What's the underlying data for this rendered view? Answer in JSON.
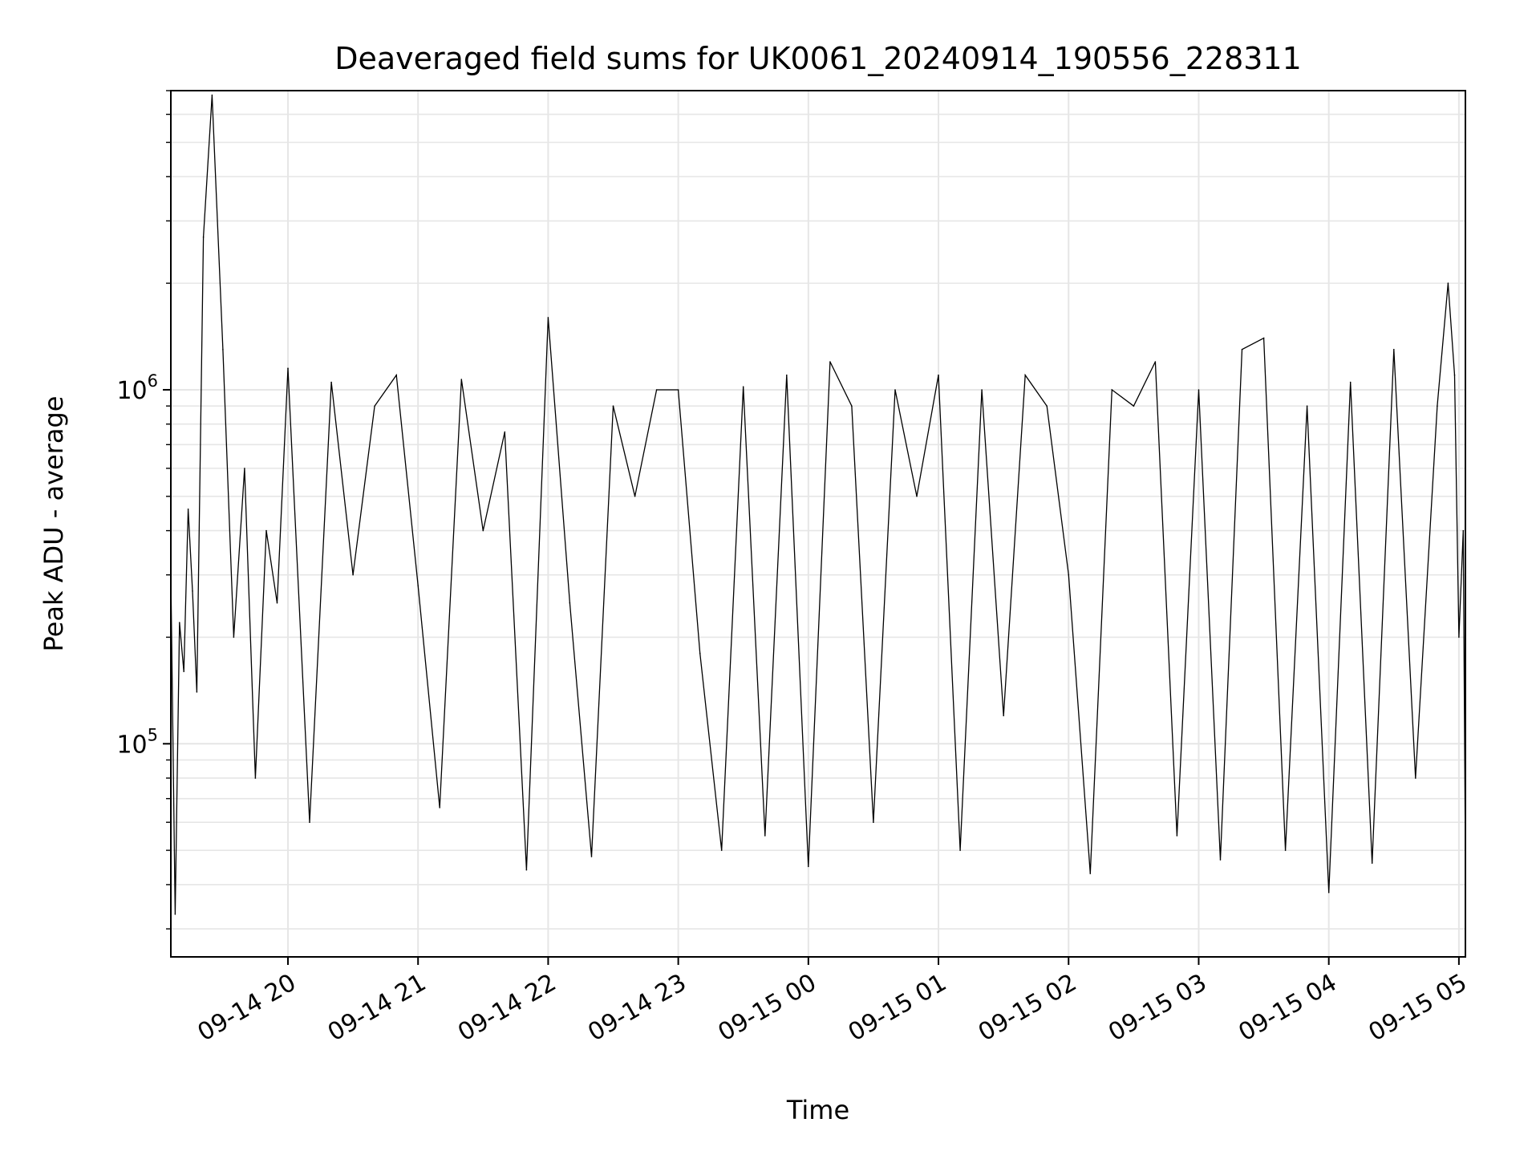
{
  "chart_data": {
    "type": "line",
    "title": "Deaveraged field sums for UK0061_20240914_190556_228311",
    "xlabel": "Time",
    "ylabel": "Peak ADU - average",
    "y_scale": "log",
    "ylim": [
      25000,
      7000000
    ],
    "xlim": [
      "2024-09-14 19:06",
      "2024-09-15 05:03"
    ],
    "grid": true,
    "line_color": "#000000",
    "x_tick_labels": [
      "09-14 20",
      "09-14 21",
      "09-14 22",
      "09-14 23",
      "09-15 00",
      "09-15 01",
      "09-15 02",
      "09-15 03",
      "09-15 04",
      "09-15 05"
    ],
    "x_tick_times": [
      "2024-09-14 20:00",
      "2024-09-14 21:00",
      "2024-09-14 22:00",
      "2024-09-14 23:00",
      "2024-09-15 00:00",
      "2024-09-15 01:00",
      "2024-09-15 02:00",
      "2024-09-15 03:00",
      "2024-09-15 04:00",
      "2024-09-15 05:00"
    ],
    "y_tick_labels": [
      {
        "base": "10",
        "exp": "5",
        "value": 100000
      },
      {
        "base": "10",
        "exp": "6",
        "value": 1000000
      }
    ],
    "series": [
      {
        "x": [
          "2024-09-14 19:06",
          "2024-09-14 19:08",
          "2024-09-14 19:10",
          "2024-09-14 19:12",
          "2024-09-14 19:14",
          "2024-09-14 19:16",
          "2024-09-14 19:18",
          "2024-09-14 19:21",
          "2024-09-14 19:25",
          "2024-09-14 19:30",
          "2024-09-14 19:35",
          "2024-09-14 19:40",
          "2024-09-14 19:45",
          "2024-09-14 19:50",
          "2024-09-14 19:55",
          "2024-09-14 20:00",
          "2024-09-14 20:10",
          "2024-09-14 20:20",
          "2024-09-14 20:30",
          "2024-09-14 20:40",
          "2024-09-14 20:50",
          "2024-09-14 21:00",
          "2024-09-14 21:10",
          "2024-09-14 21:20",
          "2024-09-14 21:30",
          "2024-09-14 21:40",
          "2024-09-14 21:50",
          "2024-09-14 22:00",
          "2024-09-14 22:10",
          "2024-09-14 22:20",
          "2024-09-14 22:30",
          "2024-09-14 22:40",
          "2024-09-14 22:50",
          "2024-09-14 23:00",
          "2024-09-14 23:10",
          "2024-09-14 23:20",
          "2024-09-14 23:30",
          "2024-09-14 23:40",
          "2024-09-14 23:50",
          "2024-09-15 00:00",
          "2024-09-15 00:10",
          "2024-09-15 00:20",
          "2024-09-15 00:30",
          "2024-09-15 00:40",
          "2024-09-15 00:50",
          "2024-09-15 01:00",
          "2024-09-15 01:10",
          "2024-09-15 01:20",
          "2024-09-15 01:30",
          "2024-09-15 01:40",
          "2024-09-15 01:50",
          "2024-09-15 02:00",
          "2024-09-15 02:10",
          "2024-09-15 02:20",
          "2024-09-15 02:30",
          "2024-09-15 02:40",
          "2024-09-15 02:50",
          "2024-09-15 03:00",
          "2024-09-15 03:10",
          "2024-09-15 03:20",
          "2024-09-15 03:30",
          "2024-09-15 03:40",
          "2024-09-15 03:50",
          "2024-09-15 04:00",
          "2024-09-15 04:10",
          "2024-09-15 04:20",
          "2024-09-15 04:30",
          "2024-09-15 04:40",
          "2024-09-15 04:50",
          "2024-09-15 04:55",
          "2024-09-15 04:58",
          "2024-09-15 05:00",
          "2024-09-15 05:02",
          "2024-09-15 05:03"
        ],
        "y": [
          300000,
          33000,
          220000,
          160000,
          460000,
          270000,
          140000,
          2700000,
          6800000,
          1300000,
          200000,
          600000,
          80000,
          400000,
          250000,
          1150000,
          60000,
          1050000,
          300000,
          900000,
          1100000,
          280000,
          66000,
          1070000,
          400000,
          760000,
          44000,
          1600000,
          250000,
          48000,
          900000,
          500000,
          1000000,
          1000000,
          180000,
          50000,
          1020000,
          55000,
          1100000,
          45000,
          1200000,
          900000,
          60000,
          1000000,
          500000,
          1100000,
          50000,
          1000000,
          120000,
          1100000,
          900000,
          300000,
          43000,
          1000000,
          900000,
          1200000,
          55000,
          1000000,
          47000,
          1300000,
          1400000,
          50000,
          900000,
          38000,
          1050000,
          46000,
          1300000,
          80000,
          900000,
          2000000,
          1100000,
          200000,
          400000,
          46000
        ]
      }
    ]
  }
}
